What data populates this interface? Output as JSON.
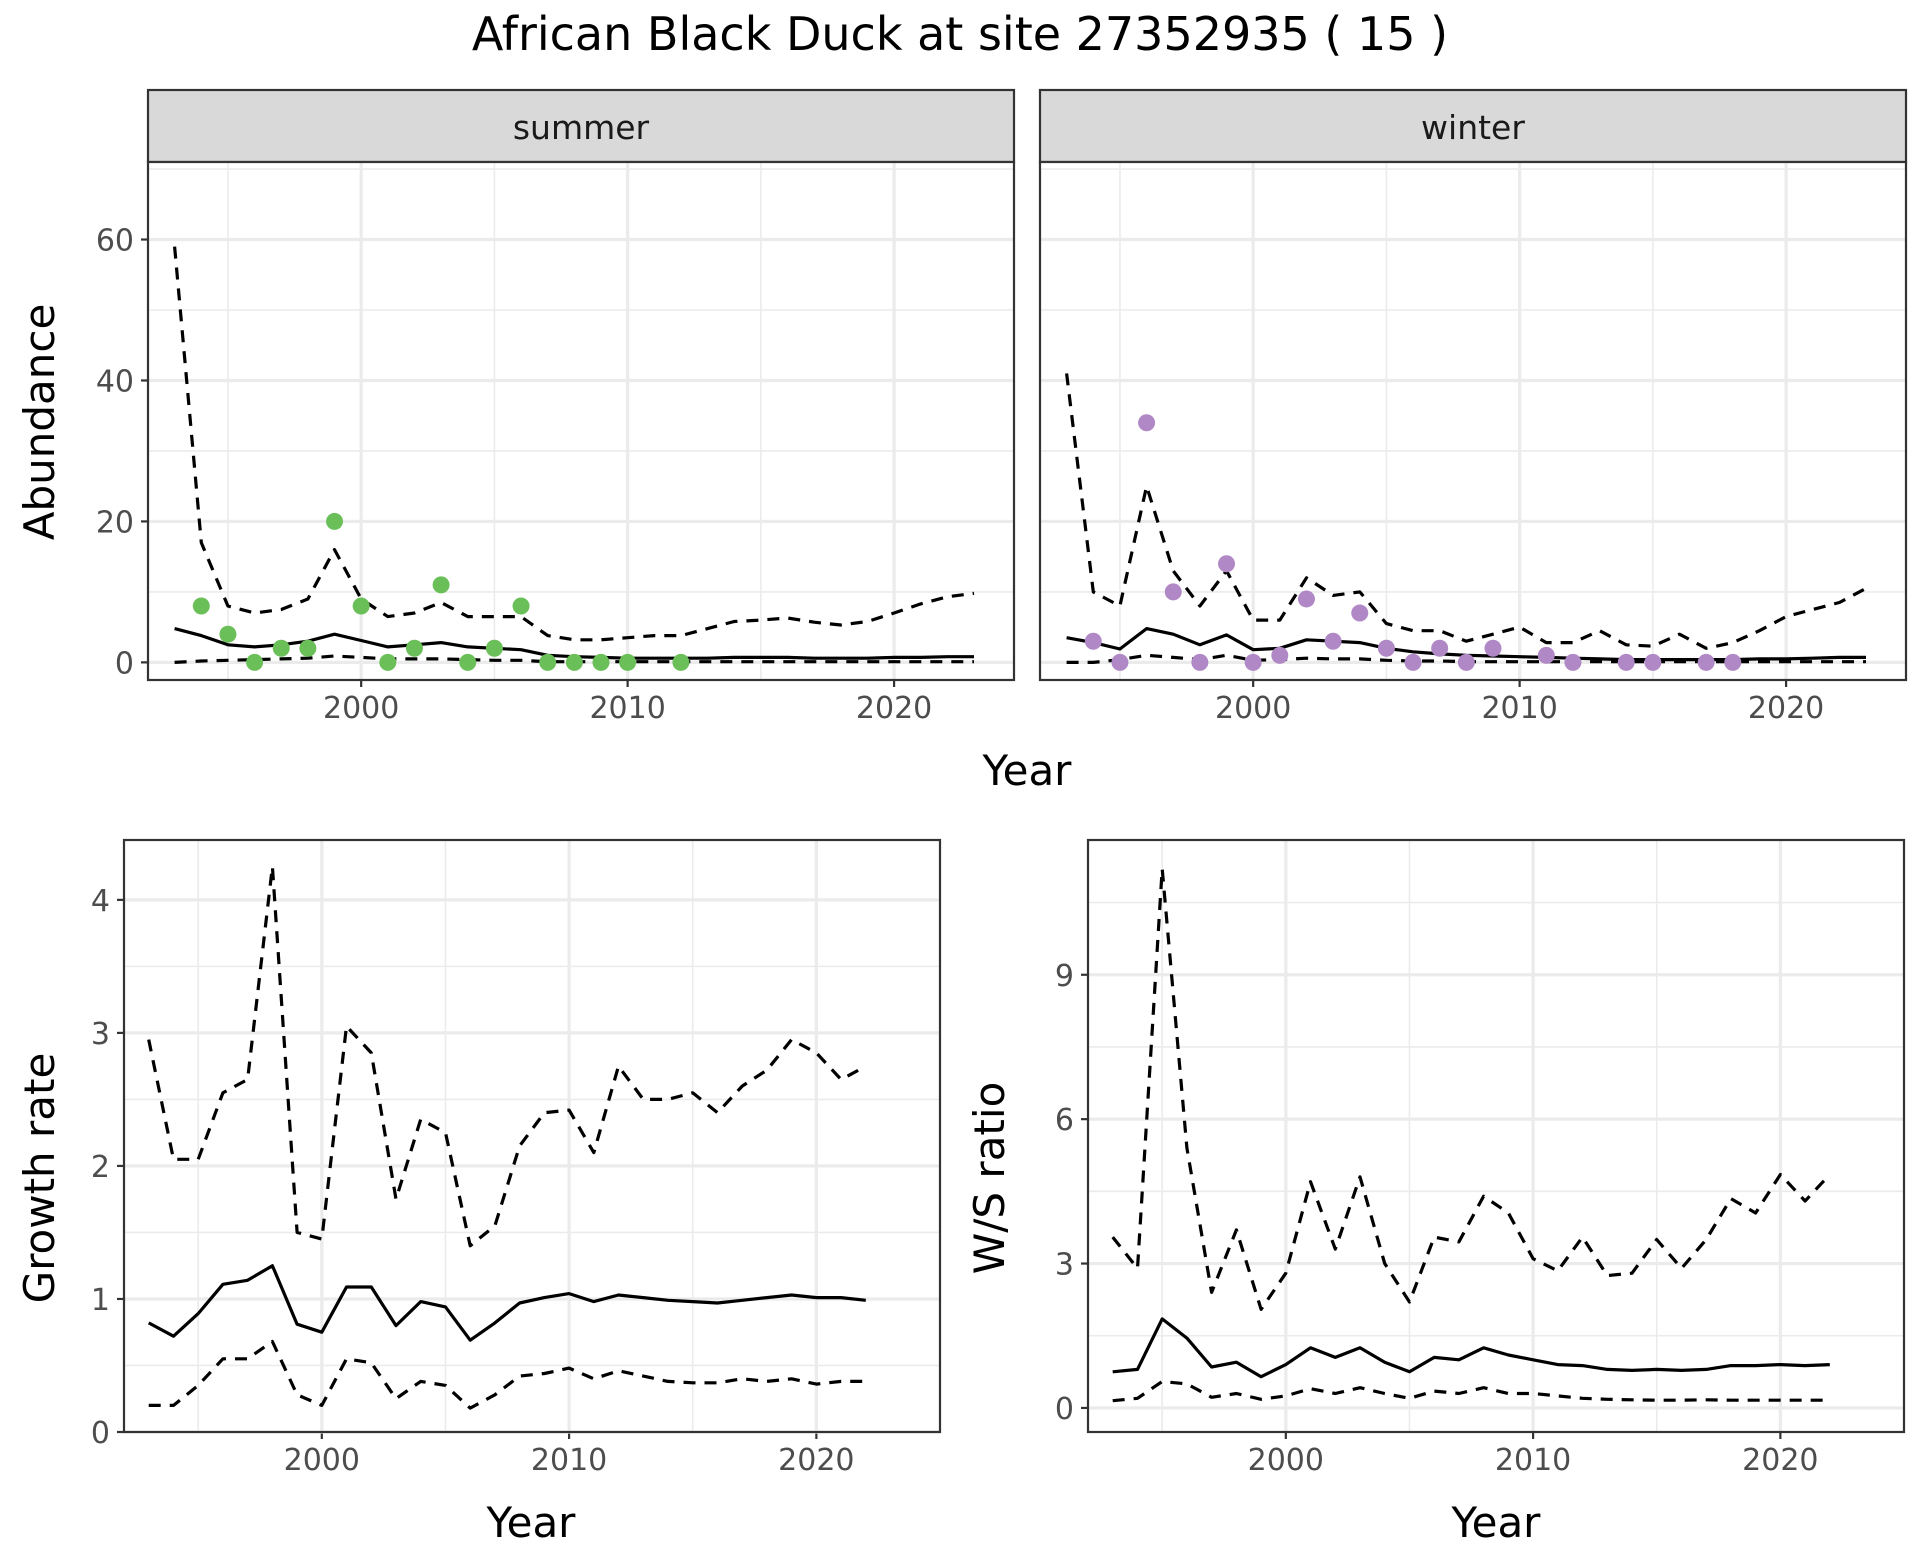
{
  "title": "African Black Duck at site 27352935 ( 15 )",
  "chart_data": [
    {
      "id": "summer",
      "type": "line",
      "strip_label": "summer",
      "xlabel": "",
      "ylabel": "Abundance",
      "xlim": [
        1992,
        2024.5
      ],
      "ylim": [
        -2.5,
        71
      ],
      "x_ticks": [
        2000,
        2010,
        2020
      ],
      "y_ticks": [
        0,
        20,
        40,
        60
      ],
      "grid": true,
      "point_color": "#6bbf59",
      "x": [
        1993,
        1994,
        1995,
        1996,
        1997,
        1998,
        1999,
        2000,
        2001,
        2002,
        2003,
        2004,
        2005,
        2006,
        2007,
        2008,
        2009,
        2010,
        2011,
        2012,
        2013,
        2014,
        2015,
        2016,
        2017,
        2018,
        2019,
        2020,
        2021,
        2022,
        2023
      ],
      "series": [
        {
          "role": "mean",
          "values": [
            4.8,
            3.8,
            2.5,
            2.2,
            2.5,
            3.0,
            4.0,
            3.1,
            2.2,
            2.5,
            2.8,
            2.2,
            2.0,
            1.8,
            1.0,
            0.8,
            0.7,
            0.6,
            0.6,
            0.6,
            0.6,
            0.7,
            0.7,
            0.7,
            0.6,
            0.6,
            0.6,
            0.7,
            0.7,
            0.8,
            0.8
          ]
        },
        {
          "role": "upper",
          "values": [
            59,
            17,
            8,
            7,
            7.5,
            9,
            16,
            9,
            6.5,
            7,
            8.5,
            6.5,
            6.5,
            6.5,
            3.8,
            3.2,
            3.2,
            3.5,
            3.8,
            3.8,
            4.8,
            5.8,
            6.0,
            6.3,
            5.7,
            5.3,
            5.8,
            7.0,
            8.3,
            9.3,
            9.8
          ]
        },
        {
          "role": "lower",
          "values": [
            0,
            0.2,
            0.3,
            0.4,
            0.5,
            0.6,
            0.9,
            0.7,
            0.5,
            0.5,
            0.5,
            0.4,
            0.3,
            0.3,
            0.1,
            0.1,
            0.1,
            0.1,
            0.1,
            0.1,
            0.1,
            0.1,
            0.1,
            0.1,
            0.1,
            0.1,
            0.1,
            0.1,
            0.1,
            0.1,
            0.1
          ]
        }
      ],
      "points": [
        {
          "x": 1994,
          "y": 8
        },
        {
          "x": 1995,
          "y": 4
        },
        {
          "x": 1996,
          "y": 0
        },
        {
          "x": 1997,
          "y": 2
        },
        {
          "x": 1998,
          "y": 2
        },
        {
          "x": 1999,
          "y": 20
        },
        {
          "x": 2000,
          "y": 8
        },
        {
          "x": 2001,
          "y": 0
        },
        {
          "x": 2002,
          "y": 2
        },
        {
          "x": 2003,
          "y": 11
        },
        {
          "x": 2004,
          "y": 0
        },
        {
          "x": 2005,
          "y": 2
        },
        {
          "x": 2006,
          "y": 8
        },
        {
          "x": 2007,
          "y": 0
        },
        {
          "x": 2008,
          "y": 0
        },
        {
          "x": 2009,
          "y": 0
        },
        {
          "x": 2010,
          "y": 0
        },
        {
          "x": 2012,
          "y": 0
        }
      ]
    },
    {
      "id": "winter",
      "type": "line",
      "strip_label": "winter",
      "xlabel": "",
      "ylabel": "",
      "xlim": [
        1992,
        2024.5
      ],
      "ylim": [
        -2.5,
        71
      ],
      "x_ticks": [
        2000,
        2010,
        2020
      ],
      "y_ticks": [
        0,
        20,
        40,
        60
      ],
      "grid": true,
      "point_color": "#b088c6",
      "x": [
        1993,
        1994,
        1995,
        1996,
        1997,
        1998,
        1999,
        2000,
        2001,
        2002,
        2003,
        2004,
        2005,
        2006,
        2007,
        2008,
        2009,
        2010,
        2011,
        2012,
        2013,
        2014,
        2015,
        2016,
        2017,
        2018,
        2019,
        2020,
        2021,
        2022,
        2023
      ],
      "series": [
        {
          "role": "mean",
          "values": [
            3.5,
            2.8,
            1.9,
            4.8,
            4.0,
            2.5,
            3.9,
            1.8,
            2.0,
            3.2,
            3.0,
            2.8,
            2.0,
            1.5,
            1.2,
            1.0,
            0.9,
            0.8,
            0.7,
            0.6,
            0.5,
            0.4,
            0.4,
            0.4,
            0.4,
            0.4,
            0.5,
            0.5,
            0.6,
            0.7,
            0.7
          ]
        },
        {
          "role": "upper",
          "values": [
            41,
            10,
            8,
            25,
            13,
            8,
            13,
            6,
            6,
            12,
            9.5,
            10,
            5.5,
            4.5,
            4.5,
            3.0,
            4.0,
            5.0,
            2.8,
            2.8,
            4.5,
            2.5,
            2.3,
            4.0,
            2.0,
            2.8,
            4.5,
            6.5,
            7.5,
            8.5,
            10.5
          ]
        },
        {
          "role": "lower",
          "values": [
            0,
            0,
            0.4,
            1.0,
            0.7,
            0.4,
            1.0,
            0.3,
            0.4,
            0.6,
            0.5,
            0.5,
            0.3,
            0.2,
            0.2,
            0.1,
            0.1,
            0.1,
            0.1,
            0.1,
            0.1,
            0.1,
            0.1,
            0.1,
            0.1,
            0.1,
            0.1,
            0.1,
            0.1,
            0.1,
            0.1
          ]
        }
      ],
      "points": [
        {
          "x": 1994,
          "y": 3
        },
        {
          "x": 1995,
          "y": 0
        },
        {
          "x": 1996,
          "y": 34
        },
        {
          "x": 1997,
          "y": 10
        },
        {
          "x": 1998,
          "y": 0
        },
        {
          "x": 1999,
          "y": 14
        },
        {
          "x": 2000,
          "y": 0
        },
        {
          "x": 2001,
          "y": 1
        },
        {
          "x": 2002,
          "y": 9
        },
        {
          "x": 2003,
          "y": 3
        },
        {
          "x": 2004,
          "y": 7
        },
        {
          "x": 2005,
          "y": 2
        },
        {
          "x": 2006,
          "y": 0
        },
        {
          "x": 2007,
          "y": 2
        },
        {
          "x": 2008,
          "y": 0
        },
        {
          "x": 2009,
          "y": 2
        },
        {
          "x": 2011,
          "y": 1
        },
        {
          "x": 2012,
          "y": 0
        },
        {
          "x": 2014,
          "y": 0
        },
        {
          "x": 2015,
          "y": 0
        },
        {
          "x": 2017,
          "y": 0
        },
        {
          "x": 2018,
          "y": 0
        }
      ]
    },
    {
      "id": "growth",
      "type": "line",
      "xlabel": "Year",
      "ylabel": "Growth rate",
      "xlim": [
        1992,
        2025
      ],
      "ylim": [
        0,
        4.45
      ],
      "x_ticks": [
        2000,
        2010,
        2020
      ],
      "y_ticks": [
        0,
        1,
        2,
        3,
        4
      ],
      "grid": true,
      "x": [
        1993,
        1994,
        1995,
        1996,
        1997,
        1998,
        1999,
        2000,
        2001,
        2002,
        2003,
        2004,
        2005,
        2006,
        2007,
        2008,
        2009,
        2010,
        2011,
        2012,
        2013,
        2014,
        2015,
        2016,
        2017,
        2018,
        2019,
        2020,
        2021,
        2022
      ],
      "series": [
        {
          "role": "mean",
          "values": [
            0.82,
            0.72,
            0.89,
            1.11,
            1.14,
            1.25,
            0.81,
            0.75,
            1.09,
            1.09,
            0.8,
            0.98,
            0.94,
            0.69,
            0.82,
            0.97,
            1.01,
            1.04,
            0.98,
            1.03,
            1.01,
            0.99,
            0.98,
            0.97,
            0.99,
            1.01,
            1.03,
            1.01,
            1.01,
            0.99
          ]
        },
        {
          "role": "upper",
          "values": [
            2.95,
            2.05,
            2.05,
            2.55,
            2.65,
            4.25,
            1.5,
            1.45,
            3.05,
            2.85,
            1.75,
            2.35,
            2.25,
            1.4,
            1.55,
            2.15,
            2.4,
            2.42,
            2.1,
            2.75,
            2.5,
            2.5,
            2.55,
            2.4,
            2.6,
            2.72,
            2.95,
            2.85,
            2.65,
            2.75
          ]
        },
        {
          "role": "lower",
          "values": [
            0.2,
            0.2,
            0.35,
            0.55,
            0.55,
            0.68,
            0.28,
            0.2,
            0.55,
            0.52,
            0.25,
            0.38,
            0.35,
            0.18,
            0.28,
            0.42,
            0.44,
            0.48,
            0.4,
            0.46,
            0.42,
            0.38,
            0.37,
            0.37,
            0.4,
            0.38,
            0.4,
            0.36,
            0.38,
            0.38
          ]
        }
      ]
    },
    {
      "id": "ratio",
      "type": "line",
      "xlabel": "Year",
      "ylabel": "W/S ratio",
      "xlim": [
        1992,
        2025
      ],
      "ylim": [
        -0.5,
        11.8
      ],
      "x_ticks": [
        2000,
        2010,
        2020
      ],
      "y_ticks": [
        0,
        3,
        6,
        9
      ],
      "grid": true,
      "x": [
        1993,
        1994,
        1995,
        1996,
        1997,
        1998,
        1999,
        2000,
        2001,
        2002,
        2003,
        2004,
        2005,
        2006,
        2007,
        2008,
        2009,
        2010,
        2011,
        2012,
        2013,
        2014,
        2015,
        2016,
        2017,
        2018,
        2019,
        2020,
        2021,
        2022
      ],
      "series": [
        {
          "role": "mean",
          "values": [
            0.75,
            0.8,
            1.85,
            1.45,
            0.85,
            0.95,
            0.65,
            0.9,
            1.25,
            1.05,
            1.25,
            0.95,
            0.75,
            1.05,
            1.0,
            1.25,
            1.1,
            1.0,
            0.9,
            0.88,
            0.8,
            0.78,
            0.8,
            0.78,
            0.8,
            0.88,
            0.88,
            0.9,
            0.88,
            0.9
          ]
        },
        {
          "role": "upper",
          "values": [
            3.55,
            2.9,
            11.2,
            5.4,
            2.4,
            3.7,
            2.05,
            2.8,
            4.7,
            3.3,
            4.8,
            3.0,
            2.2,
            3.55,
            3.45,
            4.4,
            4.05,
            3.1,
            2.85,
            3.55,
            2.75,
            2.8,
            3.5,
            2.9,
            3.5,
            4.35,
            4.05,
            4.85,
            4.3,
            4.85
          ]
        },
        {
          "role": "lower",
          "values": [
            0.15,
            0.2,
            0.55,
            0.5,
            0.22,
            0.3,
            0.18,
            0.25,
            0.4,
            0.3,
            0.42,
            0.3,
            0.2,
            0.35,
            0.3,
            0.42,
            0.3,
            0.3,
            0.25,
            0.2,
            0.18,
            0.17,
            0.16,
            0.16,
            0.17,
            0.16,
            0.16,
            0.16,
            0.16,
            0.16
          ]
        }
      ]
    }
  ]
}
